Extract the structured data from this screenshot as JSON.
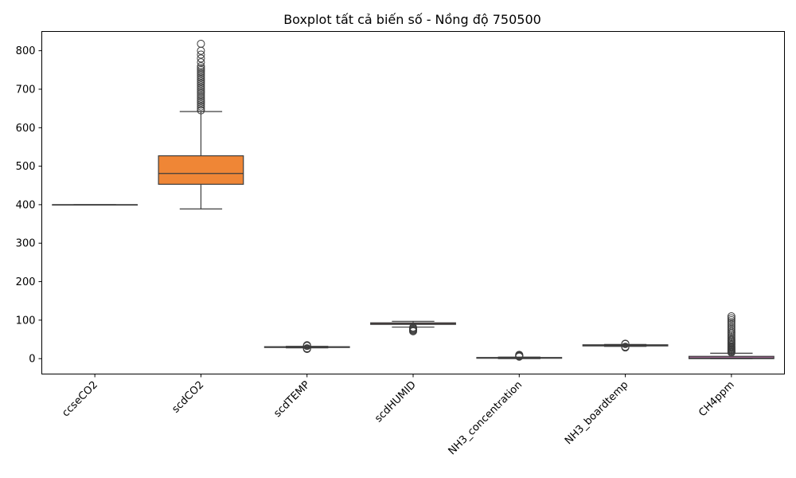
{
  "chart_data": {
    "type": "boxplot",
    "title": "Boxplot tất cả biến số - Nồng độ 750500",
    "xlabel": "",
    "ylabel": "",
    "ylim": [
      -40,
      850
    ],
    "yticks": [
      0,
      100,
      200,
      300,
      400,
      500,
      600,
      700,
      800
    ],
    "grid": false,
    "categories": [
      "ccseCO2",
      "scdCO2",
      "scdTEMP",
      "scdHUMID",
      "NH3_concentration",
      "NH3_boardtemp",
      "CH4ppm"
    ],
    "colors": [
      "#3b75af",
      "#ef8636",
      "#519e3e",
      "#c53a32",
      "#8d69b8",
      "#84584e",
      "#d57dbe"
    ],
    "boxes": [
      {
        "name": "ccseCO2",
        "whisker_low": 400,
        "q1": 400,
        "median": 400,
        "q3": 400,
        "whisker_high": 400,
        "outliers": []
      },
      {
        "name": "scdCO2",
        "whisker_low": 389,
        "q1": 453,
        "median": 481,
        "q3": 527,
        "whisker_high": 642,
        "outliers": [
          645,
          650,
          655,
          660,
          665,
          670,
          675,
          680,
          685,
          690,
          695,
          700,
          705,
          710,
          715,
          720,
          725,
          730,
          735,
          740,
          745,
          750,
          755,
          760,
          770,
          780,
          790,
          800,
          818
        ]
      },
      {
        "name": "scdTEMP",
        "whisker_low": 28,
        "q1": 29,
        "median": 30,
        "q3": 31,
        "whisker_high": 32,
        "outliers": [
          25,
          26,
          27,
          33,
          34,
          35
        ]
      },
      {
        "name": "scdHUMID",
        "whisker_low": 82,
        "q1": 89,
        "median": 91,
        "q3": 93,
        "whisker_high": 97,
        "outliers": [
          71,
          73,
          75,
          77,
          79,
          81
        ]
      },
      {
        "name": "NH3_concentration",
        "whisker_low": 0,
        "q1": 1,
        "median": 2,
        "q3": 3,
        "whisker_high": 4,
        "outliers": [
          5,
          6,
          7,
          8,
          9,
          10
        ]
      },
      {
        "name": "NH3_boardtemp",
        "whisker_low": 32,
        "q1": 33,
        "median": 34,
        "q3": 36,
        "whisker_high": 37,
        "outliers": [
          29,
          30,
          31,
          38,
          39
        ]
      },
      {
        "name": "CH4ppm",
        "whisker_low": 0,
        "q1": 0,
        "median": 2,
        "q3": 6,
        "whisker_high": 14,
        "outliers": [
          16,
          18,
          20,
          22,
          24,
          26,
          28,
          30,
          32,
          35,
          38,
          41,
          44,
          47,
          50,
          54,
          58,
          62,
          66,
          70,
          75,
          80,
          85,
          90,
          95,
          100,
          105,
          110
        ]
      }
    ]
  }
}
